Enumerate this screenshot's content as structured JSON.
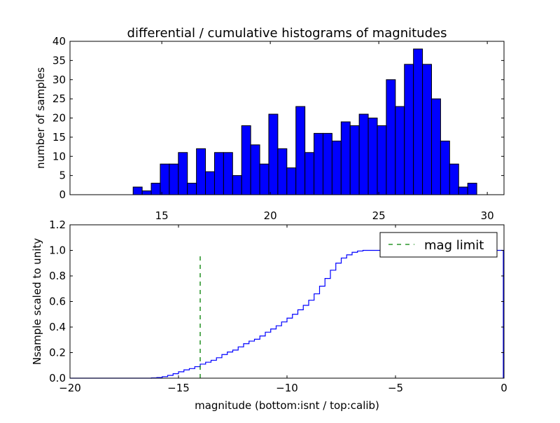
{
  "chart_data": [
    {
      "type": "bar",
      "title": "differential / cumulative histograms of magnitudes",
      "xlabel": "",
      "ylabel": "number of samples",
      "xlim": [
        10.77,
        30.77
      ],
      "ylim": [
        0,
        40
      ],
      "xticks": [
        15,
        20,
        25,
        30
      ],
      "xtick_labels": [
        "15",
        "20",
        "25",
        "30"
      ],
      "yticks": [
        0,
        5,
        10,
        15,
        20,
        25,
        30,
        35,
        40
      ],
      "ytick_labels": [
        "0",
        "5",
        "10",
        "15",
        "20",
        "25",
        "30",
        "35",
        "40"
      ],
      "bin_start": 13.68,
      "bin_width": 0.4167,
      "values": [
        2,
        1,
        3,
        8,
        8,
        11,
        3,
        12,
        6,
        11,
        11,
        5,
        18,
        13,
        8,
        21,
        12,
        7,
        23,
        11,
        16,
        16,
        14,
        19,
        18,
        21,
        20,
        18,
        30,
        23,
        34,
        38,
        34,
        25,
        14,
        8,
        2,
        3
      ],
      "color": "#0000ff",
      "grid": false
    },
    {
      "type": "line",
      "xlabel": "magnitude (bottom:isnt / top:calib)",
      "ylabel": "Nsample scaled to unity",
      "xlim": [
        -20,
        0
      ],
      "ylim": [
        0,
        1.2
      ],
      "xticks": [
        -20,
        -15,
        -10,
        -5,
        0
      ],
      "xtick_labels": [
        "−20",
        "−15",
        "−10",
        "−5",
        "0"
      ],
      "yticks": [
        0,
        0.2,
        0.4,
        0.6,
        0.8,
        1.0,
        1.2
      ],
      "ytick_labels": [
        "0.0",
        "0.2",
        "0.4",
        "0.6",
        "0.8",
        "1.0",
        "1.2"
      ],
      "series": [
        {
          "name": "cumulative",
          "style": "steps",
          "color": "#0000ff",
          "x": [
            -16.5,
            -16.25,
            -16,
            -15.75,
            -15.5,
            -15.25,
            -15,
            -14.75,
            -14.5,
            -14.25,
            -14,
            -13.75,
            -13.5,
            -13.25,
            -13,
            -12.75,
            -12.5,
            -12.25,
            -12,
            -11.75,
            -11.5,
            -11.25,
            -11,
            -10.75,
            -10.5,
            -10.25,
            -10,
            -9.75,
            -9.5,
            -9.25,
            -9,
            -8.75,
            -8.5,
            -8.25,
            -8,
            -7.75,
            -7.5,
            -7.25,
            -7,
            -6.75,
            -6.5
          ],
          "y": [
            0,
            0.002,
            0.005,
            0.012,
            0.022,
            0.035,
            0.05,
            0.065,
            0.075,
            0.09,
            0.11,
            0.125,
            0.14,
            0.16,
            0.185,
            0.205,
            0.22,
            0.245,
            0.27,
            0.29,
            0.305,
            0.33,
            0.36,
            0.385,
            0.41,
            0.44,
            0.47,
            0.5,
            0.535,
            0.57,
            0.61,
            0.66,
            0.72,
            0.78,
            0.845,
            0.9,
            0.94,
            0.965,
            0.985,
            0.995,
            1.0
          ]
        },
        {
          "name": "mag limit",
          "style": "dashed",
          "color": "#008000",
          "x": [
            -14,
            -14
          ],
          "y": [
            0,
            0.97
          ]
        }
      ],
      "legend": {
        "entries": [
          "mag limit"
        ],
        "placement": "top-right"
      },
      "grid": false
    }
  ]
}
